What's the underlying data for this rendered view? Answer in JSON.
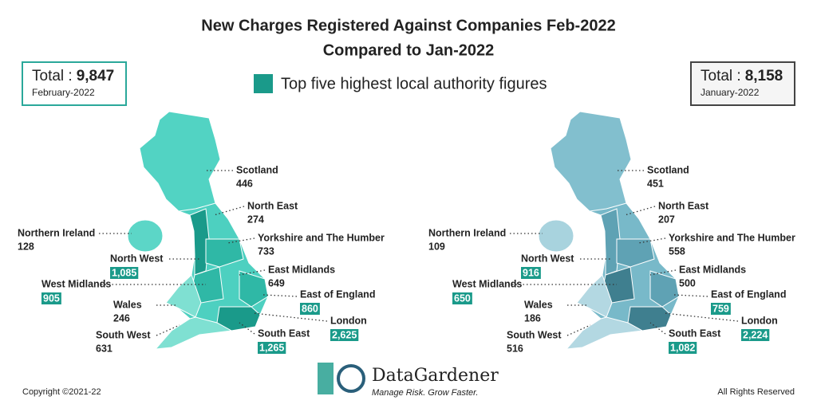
{
  "title": [
    "New Charges Registered Against Companies Feb-2022",
    "Compared to Jan-2022"
  ],
  "legend": "Top five highest local authority figures",
  "panels": [
    {
      "total_label": "Total :",
      "total": "9,847",
      "period": "February-2022",
      "regions": [
        {
          "name": "Scotland",
          "value": "446",
          "top_five": false
        },
        {
          "name": "North East",
          "value": "274",
          "top_five": false
        },
        {
          "name": "Yorkshire and The Humber",
          "value": "733",
          "top_five": false
        },
        {
          "name": "East Midlands",
          "value": "649",
          "top_five": false
        },
        {
          "name": "East of England",
          "value": "860",
          "top_five": true
        },
        {
          "name": "London",
          "value": "2,625",
          "top_five": true
        },
        {
          "name": "South East",
          "value": "1,265",
          "top_five": true
        },
        {
          "name": "South West",
          "value": "631",
          "top_five": false
        },
        {
          "name": "Wales",
          "value": "246",
          "top_five": false
        },
        {
          "name": "West Midlands",
          "value": "905",
          "top_five": true
        },
        {
          "name": "North West",
          "value": "1,085",
          "top_five": true
        },
        {
          "name": "Northern Ireland",
          "value": "128",
          "top_five": false
        }
      ]
    },
    {
      "total_label": "Total :",
      "total": "8,158",
      "period": "January-2022",
      "regions": [
        {
          "name": "Scotland",
          "value": "451",
          "top_five": false
        },
        {
          "name": "North East",
          "value": "207",
          "top_five": false
        },
        {
          "name": "Yorkshire and The Humber",
          "value": "558",
          "top_five": false
        },
        {
          "name": "East Midlands",
          "value": "500",
          "top_five": false
        },
        {
          "name": "East of England",
          "value": "759",
          "top_five": true
        },
        {
          "name": "London",
          "value": "2,224",
          "top_five": true
        },
        {
          "name": "South East",
          "value": "1,082",
          "top_five": true
        },
        {
          "name": "South West",
          "value": "516",
          "top_five": false
        },
        {
          "name": "Wales",
          "value": "186",
          "top_five": false
        },
        {
          "name": "West Midlands",
          "value": "650",
          "top_five": true
        },
        {
          "name": "North West",
          "value": "916",
          "top_five": true
        },
        {
          "name": "Northern Ireland",
          "value": "109",
          "top_five": false
        }
      ]
    }
  ],
  "logo": {
    "name": "DataGardener",
    "tagline": "Manage Risk. Grow Faster."
  },
  "footer": {
    "left": "Copyright ©2021-22",
    "right": "All Rights Reserved"
  }
}
